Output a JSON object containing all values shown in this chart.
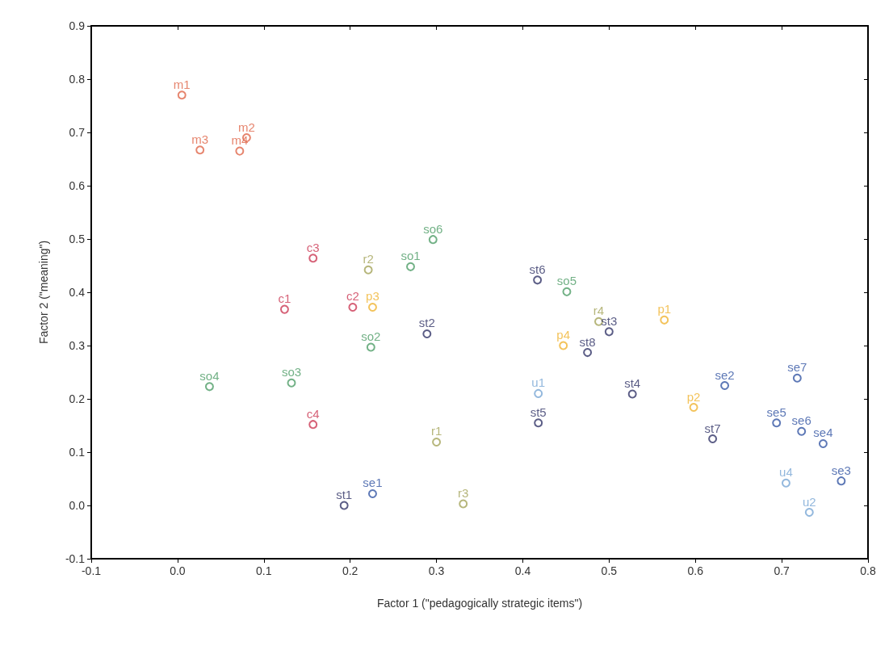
{
  "chart_data": {
    "type": "scatter",
    "xlabel": "Factor 1 (\"pedagogically strategic items\")",
    "ylabel": "Factor 2 (\"meaning\")",
    "xlim": [
      -0.1,
      0.8
    ],
    "xticks": [
      -0.1,
      {
        "value": 0,
        "label": "0.0"
      },
      0.1,
      0.2,
      0.3,
      0.4,
      0.5,
      0.6,
      0.7,
      0.8
    ],
    "ylim": [
      -0.1,
      0.9
    ],
    "yticks": [
      -0.1,
      {
        "value": 0,
        "label": "0.0"
      },
      0.1,
      0.2,
      0.3,
      0.4,
      0.5,
      0.6,
      0.7,
      0.8,
      0.9
    ],
    "grid": false,
    "marker": "circle",
    "series": [
      {
        "color": "#e0674a",
        "x": [
          0.005,
          0.08,
          0.026,
          0.072
        ],
        "values": [
          0.77,
          0.69,
          0.667,
          0.665
        ]
      },
      {
        "color": "#cc3a55",
        "x": [
          0.124,
          0.203,
          0.157,
          0.157
        ],
        "values": [
          0.368,
          0.372,
          0.464,
          0.152
        ]
      },
      {
        "color": "#4f9e68",
        "x": [
          0.27,
          0.224,
          0.132,
          0.037,
          0.451,
          0.296
        ],
        "values": [
          0.448,
          0.297,
          0.23,
          0.223,
          0.401,
          0.499
        ]
      },
      {
        "color": "#a4a45a",
        "x": [
          0.3,
          0.221,
          0.331,
          0.488
        ],
        "values": [
          0.119,
          0.442,
          0.003,
          0.345
        ]
      },
      {
        "color": "#f0b432",
        "x": [
          0.564,
          0.598,
          0.226,
          0.447
        ],
        "values": [
          0.348,
          0.184,
          0.372,
          0.3
        ]
      },
      {
        "color": "#323468",
        "x": [
          0.193,
          0.289,
          0.5,
          0.527,
          0.418,
          0.417,
          0.62,
          0.475
        ],
        "values": [
          0,
          0.322,
          0.326,
          0.209,
          0.155,
          0.423,
          0.125,
          0.287
        ]
      },
      {
        "color": "#3556a4",
        "x": [
          0.226,
          0.634,
          0.769,
          0.748,
          0.694,
          0.723,
          0.718
        ],
        "values": [
          0.022,
          0.225,
          0.046,
          0.116,
          0.155,
          0.139,
          0.239
        ]
      },
      {
        "color": "#78a6d4",
        "x": [
          0.418,
          0.732,
          0.705
        ],
        "values": [
          0.21,
          -0.013,
          0.042
        ]
      }
    ],
    "annotations": [
      {
        "text": "m1",
        "x": 0.005,
        "y": 0.77
      },
      {
        "text": "m2",
        "x": 0.08,
        "y": 0.69
      },
      {
        "text": "m3",
        "x": 0.026,
        "y": 0.667
      },
      {
        "text": "m4",
        "x": 0.072,
        "y": 0.665
      },
      {
        "text": "c1",
        "x": 0.124,
        "y": 0.368
      },
      {
        "text": "c2",
        "x": 0.203,
        "y": 0.372
      },
      {
        "text": "c3",
        "x": 0.157,
        "y": 0.464
      },
      {
        "text": "c4",
        "x": 0.157,
        "y": 0.152
      },
      {
        "text": "so1",
        "x": 0.27,
        "y": 0.448
      },
      {
        "text": "so2",
        "x": 0.224,
        "y": 0.297
      },
      {
        "text": "so3",
        "x": 0.132,
        "y": 0.23
      },
      {
        "text": "so4",
        "x": 0.037,
        "y": 0.223
      },
      {
        "text": "so5",
        "x": 0.451,
        "y": 0.401
      },
      {
        "text": "so6",
        "x": 0.296,
        "y": 0.499
      },
      {
        "text": "r1",
        "x": 0.3,
        "y": 0.119
      },
      {
        "text": "r2",
        "x": 0.221,
        "y": 0.442
      },
      {
        "text": "r3",
        "x": 0.331,
        "y": 0.003
      },
      {
        "text": "r4",
        "x": 0.488,
        "y": 0.345
      },
      {
        "text": "p1",
        "x": 0.564,
        "y": 0.348
      },
      {
        "text": "p2",
        "x": 0.598,
        "y": 0.184
      },
      {
        "text": "p3",
        "x": 0.226,
        "y": 0.372
      },
      {
        "text": "p4",
        "x": 0.447,
        "y": 0.3
      },
      {
        "text": "st1",
        "x": 0.193,
        "y": 0
      },
      {
        "text": "st2",
        "x": 0.289,
        "y": 0.322
      },
      {
        "text": "st3",
        "x": 0.5,
        "y": 0.326
      },
      {
        "text": "st4",
        "x": 0.527,
        "y": 0.209
      },
      {
        "text": "st5",
        "x": 0.418,
        "y": 0.155
      },
      {
        "text": "st6",
        "x": 0.417,
        "y": 0.423
      },
      {
        "text": "st7",
        "x": 0.62,
        "y": 0.125
      },
      {
        "text": "st8",
        "x": 0.475,
        "y": 0.287
      },
      {
        "text": "se1",
        "x": 0.226,
        "y": 0.022
      },
      {
        "text": "se2",
        "x": 0.634,
        "y": 0.225
      },
      {
        "text": "se3",
        "x": 0.769,
        "y": 0.046
      },
      {
        "text": "se4",
        "x": 0.748,
        "y": 0.116
      },
      {
        "text": "se5",
        "x": 0.694,
        "y": 0.155
      },
      {
        "text": "se6",
        "x": 0.723,
        "y": 0.139
      },
      {
        "text": "se7",
        "x": 0.718,
        "y": 0.239
      },
      {
        "text": "u1",
        "x": 0.418,
        "y": 0.21
      },
      {
        "text": "u2",
        "x": 0.732,
        "y": -0.013
      },
      {
        "text": "u4",
        "x": 0.705,
        "y": 0.042
      }
    ]
  }
}
